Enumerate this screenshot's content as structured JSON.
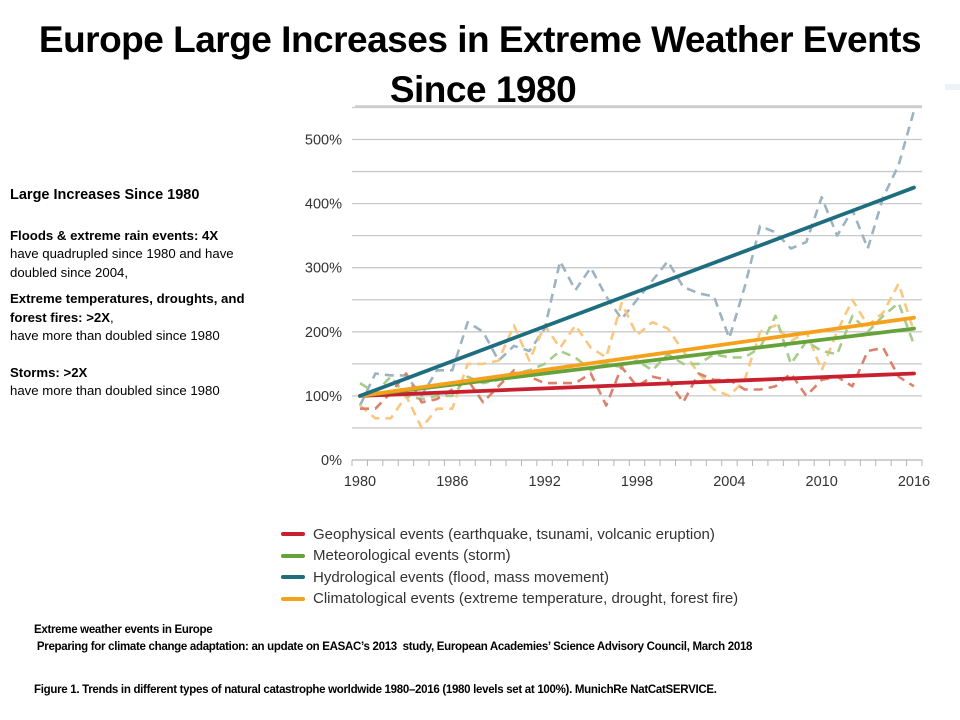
{
  "slide": {
    "title_line1": "Europe Large Increases in Extreme Weather Events",
    "title_line2": "Since 1980"
  },
  "sidebar": {
    "heading": "Large Increases Since 1980",
    "floods_bold": "Floods & extreme rain events: 4X",
    "floods_text": "have quadrupled  since 1980 and have doubled  since 2004,",
    "temps_bold": "Extreme temperatures, droughts, and forest fires: >2X",
    "temps_comma": ",",
    "temps_text": "have more  than doubled  since 1980",
    "storms_bold": "Storms:  >2X",
    "storms_text": "have more  than doubled  since 1980"
  },
  "captions": {
    "source_title": "Extreme weather events in Europe",
    "source_detail": " Preparing for climate change adaptation: an update on EASAC’s 2013  study, European Academies’ Science Advisory Council, March 2018",
    "figure": "Figure 1. Trends in different types of natural catastrophe worldwide 1980–2016  (1980  levels set at 100%).  MunichRe NatCatSERVICE."
  },
  "chart_data": {
    "type": "line",
    "title": "",
    "xlabel": "",
    "ylabel": "",
    "x": [
      1980,
      1981,
      1982,
      1983,
      1984,
      1985,
      1986,
      1987,
      1988,
      1989,
      1990,
      1991,
      1992,
      1993,
      1994,
      1995,
      1996,
      1997,
      1998,
      1999,
      2000,
      2001,
      2002,
      2003,
      2004,
      2005,
      2006,
      2007,
      2008,
      2009,
      2010,
      2011,
      2012,
      2013,
      2014,
      2015,
      2016
    ],
    "xlim": [
      1980,
      2016
    ],
    "ylim": [
      0,
      550
    ],
    "x_tick_labels": [
      "1980",
      "1986",
      "1992",
      "1998",
      "2004",
      "2010",
      "2016"
    ],
    "x_ticks": [
      1980,
      1986,
      1992,
      1998,
      2004,
      2010,
      2016
    ],
    "y_ticks": [
      0,
      100,
      200,
      300,
      400,
      500
    ],
    "y_tick_labels": [
      "0%",
      "100%",
      "200%",
      "300%",
      "400%",
      "500%"
    ],
    "y_gridlines": [
      50,
      100,
      150,
      200,
      250,
      300,
      350,
      400,
      450,
      500,
      550
    ],
    "grid": true,
    "legend_position": "bottom",
    "series": [
      {
        "name": "Geophysical events (earthquake, tsunami, volcanic eruption)",
        "color": "#c8202e",
        "dash_color": "#d9826c",
        "trend": [
          100,
          135
        ],
        "values": [
          80,
          80,
          105,
          135,
          90,
          95,
          110,
          125,
          90,
          115,
          140,
          130,
          120,
          120,
          120,
          135,
          85,
          145,
          115,
          130,
          125,
          90,
          135,
          125,
          125,
          110,
          110,
          115,
          135,
          100,
          125,
          130,
          115,
          170,
          175,
          130,
          115
        ]
      },
      {
        "name": "Meteorological events (storm)",
        "color": "#66a23a",
        "dash_color": "#a7cb8a",
        "trend": [
          100,
          205
        ],
        "values": [
          120,
          105,
          130,
          100,
          95,
          100,
          100,
          130,
          120,
          125,
          135,
          140,
          150,
          170,
          160,
          140,
          150,
          145,
          155,
          140,
          165,
          150,
          150,
          165,
          160,
          160,
          175,
          225,
          150,
          185,
          170,
          165,
          225,
          200,
          225,
          245,
          180
        ]
      },
      {
        "name": "Hydrological events (flood, mass movement)",
        "color": "#1e6e80",
        "dash_color": "#9cb4c2",
        "trend": [
          100,
          425
        ],
        "values": [
          85,
          135,
          132,
          132,
          100,
          140,
          140,
          215,
          200,
          155,
          178,
          170,
          205,
          310,
          265,
          300,
          255,
          220,
          250,
          280,
          310,
          270,
          260,
          255,
          190,
          270,
          365,
          355,
          330,
          340,
          410,
          350,
          390,
          330,
          410,
          460,
          545
        ]
      },
      {
        "name": "Climatological events (extreme temperature, drought, forest fire)",
        "color": "#f5a11c",
        "dash_color": "#f9c77f",
        "trend": [
          100,
          222
        ],
        "values": [
          85,
          65,
          65,
          100,
          50,
          80,
          80,
          150,
          150,
          155,
          210,
          155,
          210,
          175,
          210,
          175,
          160,
          245,
          195,
          215,
          205,
          170,
          135,
          110,
          100,
          125,
          200,
          210,
          185,
          200,
          140,
          200,
          250,
          210,
          230,
          275,
          200
        ]
      }
    ]
  }
}
